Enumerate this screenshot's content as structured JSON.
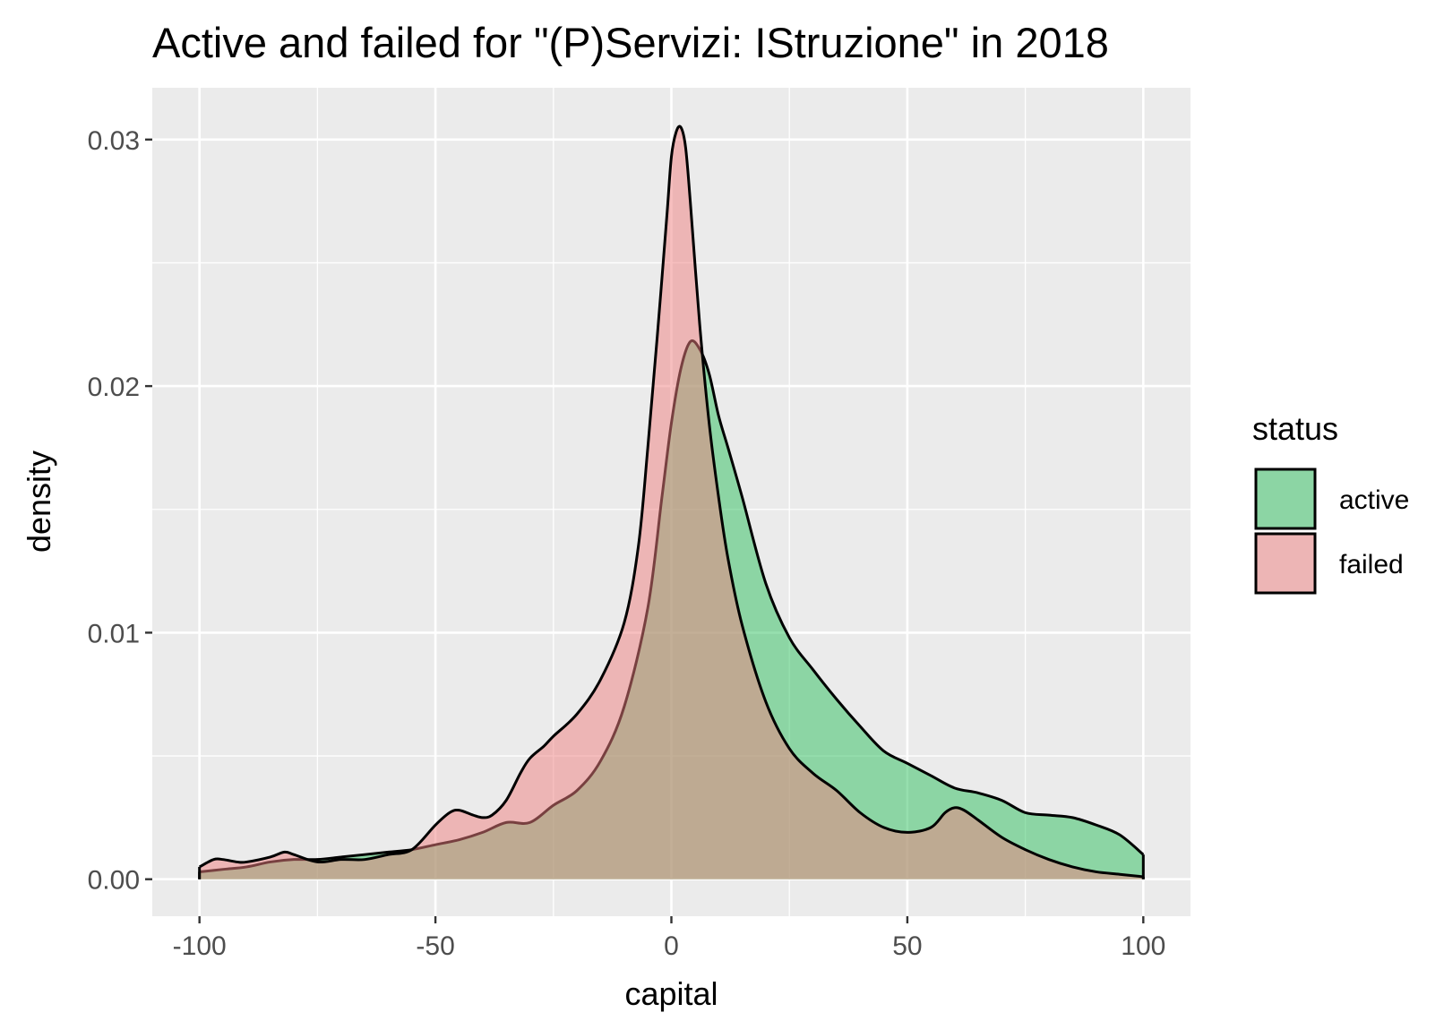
{
  "chart_data": {
    "type": "area",
    "title": "Active and failed for \"(P)Servizi: IStruzione\" in 2018",
    "xlabel": "capital",
    "ylabel": "density",
    "xlim": [
      -110,
      110
    ],
    "ylim": [
      -0.0015,
      0.0321
    ],
    "x_ticks": [
      -100,
      -50,
      0,
      50,
      100
    ],
    "x_tick_labels": [
      "-100",
      "-50",
      "0",
      "50",
      "100"
    ],
    "y_ticks": [
      0,
      0.01,
      0.02,
      0.03
    ],
    "y_tick_labels": [
      "0.00",
      "0.01",
      "0.02",
      "0.03"
    ],
    "grid": true,
    "legend": {
      "title": "status",
      "position": "right"
    },
    "series": [
      {
        "name": "active",
        "color": "#2ebf5e",
        "x": [
          -100,
          -95,
          -90,
          -85,
          -80,
          -75,
          -70,
          -65,
          -60,
          -55,
          -50,
          -45,
          -40,
          -35,
          -30,
          -25,
          -20,
          -15,
          -10,
          -5,
          -2,
          0,
          2,
          4,
          6,
          8,
          10,
          12,
          15,
          20,
          25,
          30,
          35,
          40,
          45,
          50,
          55,
          60,
          65,
          70,
          75,
          80,
          85,
          90,
          95,
          100
        ],
        "values": [
          0.0003,
          0.0004,
          0.0005,
          0.0007,
          0.0008,
          0.0008,
          0.0009,
          0.001,
          0.0011,
          0.0012,
          0.0014,
          0.0016,
          0.0019,
          0.0023,
          0.0023,
          0.003,
          0.0036,
          0.0048,
          0.007,
          0.011,
          0.0155,
          0.0185,
          0.0207,
          0.0218,
          0.0215,
          0.0205,
          0.0188,
          0.0175,
          0.0155,
          0.012,
          0.0098,
          0.0085,
          0.0073,
          0.0062,
          0.0052,
          0.0047,
          0.0042,
          0.0037,
          0.0035,
          0.0032,
          0.0027,
          0.0026,
          0.0025,
          0.0022,
          0.0018,
          0.001
        ]
      },
      {
        "name": "failed",
        "color": "#f08080",
        "x": [
          -100,
          -97,
          -95,
          -92,
          -90,
          -85,
          -82,
          -80,
          -75,
          -70,
          -65,
          -60,
          -55,
          -50,
          -47,
          -45,
          -42,
          -40,
          -38,
          -35,
          -32,
          -30,
          -27,
          -25,
          -20,
          -15,
          -10,
          -7,
          -5,
          -3,
          -1,
          0,
          1,
          2,
          3,
          4,
          6,
          8,
          10,
          12,
          15,
          20,
          25,
          30,
          35,
          40,
          45,
          50,
          55,
          58,
          60,
          62,
          65,
          70,
          75,
          80,
          85,
          90,
          95,
          100
        ],
        "values": [
          0.0005,
          0.0008,
          0.0008,
          0.0007,
          0.0007,
          0.0009,
          0.0011,
          0.001,
          0.0007,
          0.0008,
          0.0008,
          0.001,
          0.0012,
          0.0022,
          0.0027,
          0.0028,
          0.0026,
          0.0025,
          0.0026,
          0.0032,
          0.0043,
          0.0049,
          0.0054,
          0.0058,
          0.0067,
          0.0081,
          0.0104,
          0.0135,
          0.0175,
          0.022,
          0.0268,
          0.0293,
          0.0303,
          0.0305,
          0.0297,
          0.0275,
          0.0225,
          0.0185,
          0.0155,
          0.013,
          0.0103,
          0.0072,
          0.0053,
          0.0043,
          0.0036,
          0.0027,
          0.0021,
          0.0019,
          0.0021,
          0.0027,
          0.0029,
          0.0028,
          0.0024,
          0.0017,
          0.0012,
          0.0008,
          0.0005,
          0.0003,
          0.0002,
          0.0001
        ]
      }
    ]
  }
}
